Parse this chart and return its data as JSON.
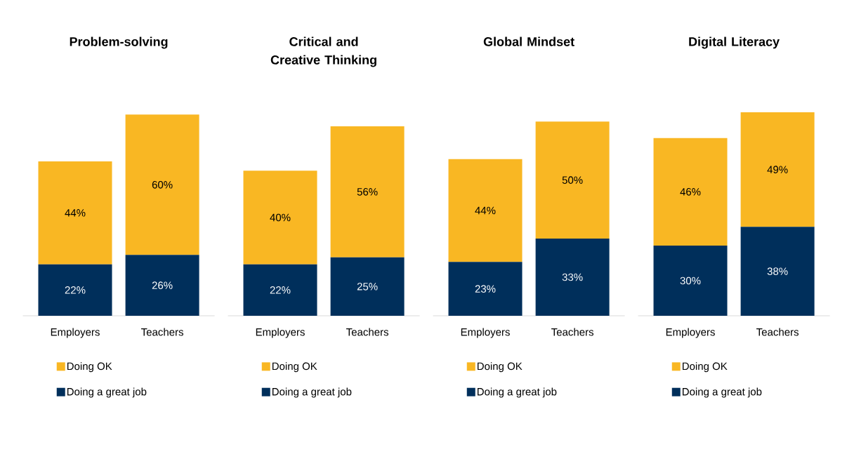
{
  "chart_data": [
    {
      "type": "bar",
      "stacked": true,
      "title": "Problem-solving",
      "categories": [
        "Employers",
        "Teachers"
      ],
      "legend": "bottom",
      "tick_labels": "x",
      "series": [
        {
          "name": "Doing a great job",
          "color": "#002f5b",
          "values": [
            22,
            26
          ],
          "value_labels": [
            "22%",
            "26%"
          ]
        },
        {
          "name": "Doing OK",
          "color": "#f9b723",
          "values": [
            44,
            60
          ],
          "value_labels": [
            "44%",
            "60%"
          ]
        }
      ]
    },
    {
      "type": "bar",
      "stacked": true,
      "title": "Critical and Creative Thinking",
      "categories": [
        "Employers",
        "Teachers"
      ],
      "legend": "bottom",
      "tick_labels": "x",
      "series": [
        {
          "name": "Doing a great job",
          "color": "#002f5b",
          "values": [
            22,
            25
          ],
          "value_labels": [
            "22%",
            "25%"
          ]
        },
        {
          "name": "Doing OK",
          "color": "#f9b723",
          "values": [
            40,
            56
          ],
          "value_labels": [
            "40%",
            "56%"
          ]
        }
      ]
    },
    {
      "type": "bar",
      "stacked": true,
      "title": "Global Mindset",
      "categories": [
        "Employers",
        "Teachers"
      ],
      "legend": "bottom",
      "tick_labels": "x",
      "series": [
        {
          "name": "Doing a great job",
          "color": "#002f5b",
          "values": [
            23,
            33
          ],
          "value_labels": [
            "23%",
            "33%"
          ]
        },
        {
          "name": "Doing OK",
          "color": "#f9b723",
          "values": [
            44,
            50
          ],
          "value_labels": [
            "44%",
            "50%"
          ]
        }
      ]
    },
    {
      "type": "bar",
      "stacked": true,
      "title": "Digital Literacy",
      "categories": [
        "Employers",
        "Teachers"
      ],
      "legend": "bottom",
      "tick_labels": "x",
      "series": [
        {
          "name": "Doing a great job",
          "color": "#002f5b",
          "values": [
            30,
            38
          ],
          "value_labels": [
            "30%",
            "38%"
          ]
        },
        {
          "name": "Doing OK",
          "color": "#f9b723",
          "values": [
            46,
            49
          ],
          "value_labels": [
            "46%",
            "49%"
          ]
        }
      ]
    }
  ]
}
